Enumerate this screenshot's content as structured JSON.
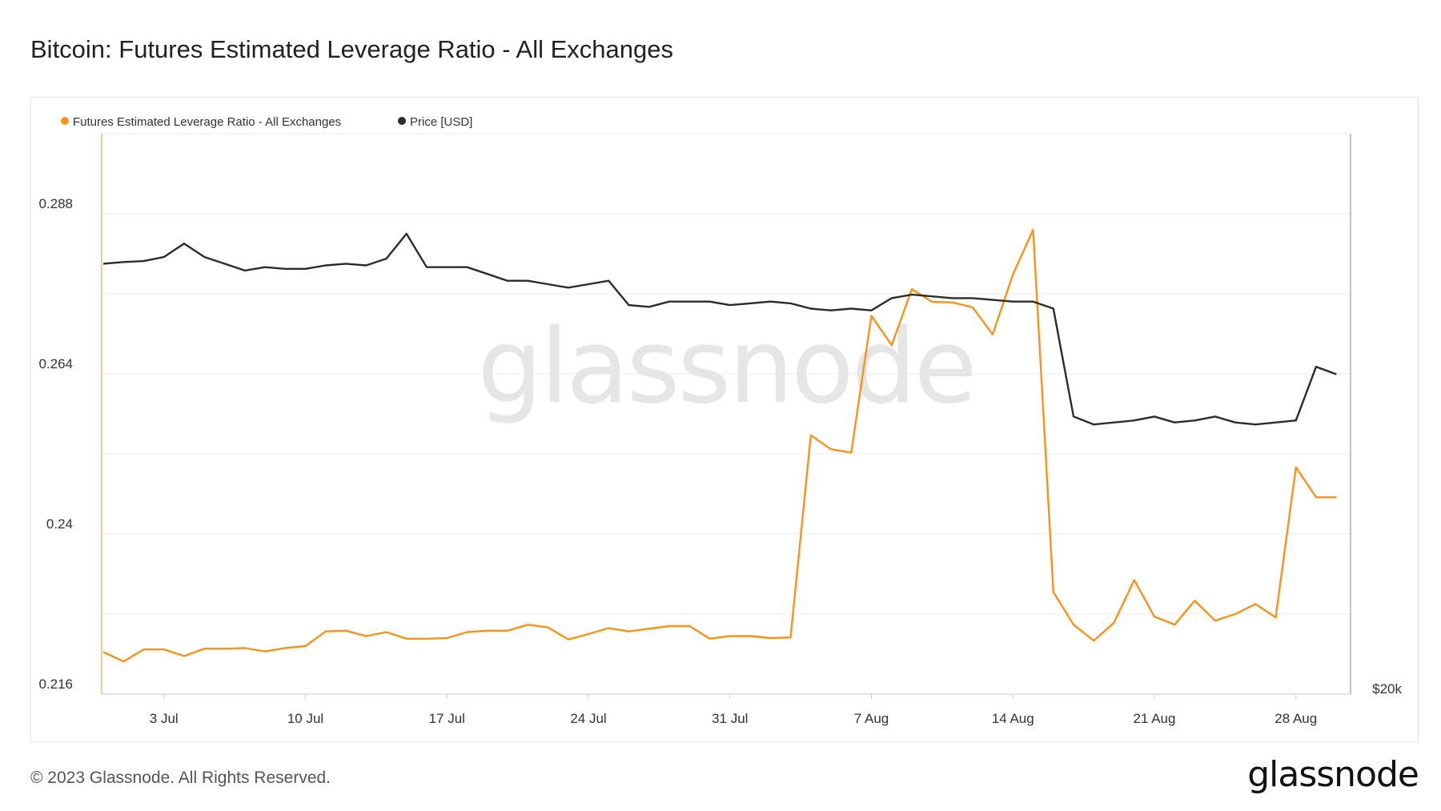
{
  "title": "Bitcoin: Futures Estimated Leverage Ratio - All Exchanges",
  "footer": {
    "copyright": "© 2023 Glassnode. All Rights Reserved.",
    "logo_text": "glassnode"
  },
  "watermark": "glassnode",
  "colors": {
    "leverage": "#f7931a",
    "price": "#2b2b2b",
    "grid": "#ececec",
    "axis": "#cccccc"
  },
  "chart_data": {
    "type": "line",
    "title": "Bitcoin: Futures Estimated Leverage Ratio - All Exchanges",
    "legend_position": "top-left",
    "grid": true,
    "x": [
      "2023-06-30",
      "2023-07-01",
      "2023-07-02",
      "2023-07-03",
      "2023-07-04",
      "2023-07-05",
      "2023-07-06",
      "2023-07-07",
      "2023-07-08",
      "2023-07-09",
      "2023-07-10",
      "2023-07-11",
      "2023-07-12",
      "2023-07-13",
      "2023-07-14",
      "2023-07-15",
      "2023-07-16",
      "2023-07-17",
      "2023-07-18",
      "2023-07-19",
      "2023-07-20",
      "2023-07-21",
      "2023-07-22",
      "2023-07-23",
      "2023-07-24",
      "2023-07-25",
      "2023-07-26",
      "2023-07-27",
      "2023-07-28",
      "2023-07-29",
      "2023-07-30",
      "2023-07-31",
      "2023-08-01",
      "2023-08-02",
      "2023-08-03",
      "2023-08-04",
      "2023-08-05",
      "2023-08-06",
      "2023-08-07",
      "2023-08-08",
      "2023-08-09",
      "2023-08-10",
      "2023-08-11",
      "2023-08-12",
      "2023-08-13",
      "2023-08-14",
      "2023-08-15",
      "2023-08-16",
      "2023-08-17",
      "2023-08-18",
      "2023-08-19",
      "2023-08-20",
      "2023-08-21",
      "2023-08-22",
      "2023-08-23",
      "2023-08-24",
      "2023-08-25",
      "2023-08-26",
      "2023-08-27",
      "2023-08-28",
      "2023-08-29",
      "2023-08-30"
    ],
    "x_ticks": [
      "3 Jul",
      "10 Jul",
      "17 Jul",
      "24 Jul",
      "31 Jul",
      "7 Aug",
      "14 Aug",
      "21 Aug",
      "28 Aug"
    ],
    "y_left": {
      "ticks": [
        "0.216",
        "0.24",
        "0.264",
        "0.288"
      ],
      "range": [
        0.216,
        0.3
      ]
    },
    "y_right": {
      "ticks": [
        "$20k"
      ],
      "scale": "log"
    },
    "series": [
      {
        "name": "Futures Estimated Leverage Ratio - All Exchanges",
        "axis": "left",
        "values": [
          0.2223,
          0.2209,
          0.2227,
          0.2227,
          0.2217,
          0.2228,
          0.2228,
          0.2229,
          0.2224,
          0.2229,
          0.2232,
          0.2254,
          0.2255,
          0.2247,
          0.2253,
          0.2243,
          0.2243,
          0.2244,
          0.2253,
          0.2255,
          0.2255,
          0.2264,
          0.226,
          0.2242,
          0.225,
          0.2259,
          0.2254,
          0.2258,
          0.2262,
          0.2262,
          0.2243,
          0.2247,
          0.2247,
          0.2244,
          0.2245,
          0.2548,
          0.2527,
          0.2522,
          0.2727,
          0.2683,
          0.2767,
          0.2748,
          0.2747,
          0.274,
          0.2699,
          0.2789,
          0.2856,
          0.2313,
          0.2264,
          0.224,
          0.2267,
          0.2331,
          0.2276,
          0.2264,
          0.23,
          0.227,
          0.228,
          0.2295,
          0.2275,
          0.25,
          0.2455,
          0.2455
        ]
      },
      {
        "name": "Price [USD]",
        "axis": "right",
        "values": [
          30400,
          30450,
          30480,
          30600,
          31000,
          30600,
          30400,
          30200,
          30300,
          30250,
          30250,
          30350,
          30400,
          30350,
          30550,
          31300,
          30300,
          30300,
          30300,
          30100,
          29900,
          29900,
          29800,
          29700,
          29800,
          29900,
          29200,
          29150,
          29300,
          29300,
          29300,
          29200,
          29250,
          29300,
          29250,
          29100,
          29050,
          29100,
          29050,
          29400,
          29500,
          29450,
          29400,
          29400,
          29350,
          29300,
          29300,
          29100,
          26200,
          26000,
          26050,
          26100,
          26200,
          26050,
          26100,
          26200,
          26050,
          26000,
          26050,
          26100,
          27500,
          27300
        ]
      }
    ]
  }
}
